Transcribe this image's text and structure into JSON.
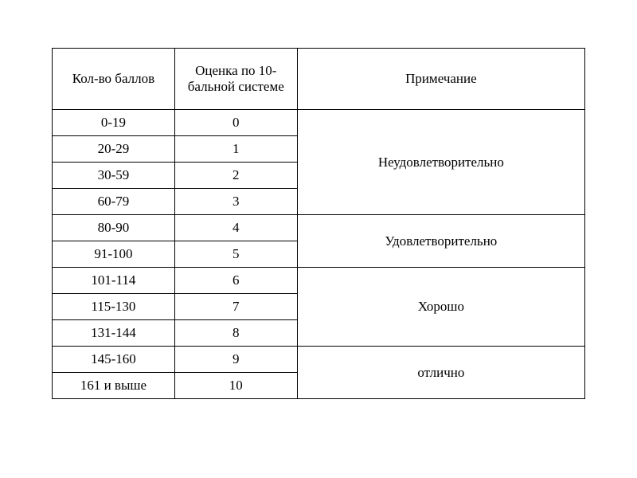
{
  "table": {
    "type": "table",
    "columns": [
      {
        "header": "Кол-во баллов",
        "width": "23%"
      },
      {
        "header": "Оценка по 10-бальной системе",
        "width": "23%"
      },
      {
        "header": "Примечание",
        "width": "54%"
      }
    ],
    "rows": [
      {
        "points": "0-19",
        "grade": "0"
      },
      {
        "points": "20-29",
        "grade": "1"
      },
      {
        "points": "30-59",
        "grade": "2"
      },
      {
        "points": "60-79",
        "grade": "3"
      },
      {
        "points": "80-90",
        "grade": "4"
      },
      {
        "points": "91-100",
        "grade": "5"
      },
      {
        "points": "101-114",
        "grade": "6"
      },
      {
        "points": "115-130",
        "grade": "7"
      },
      {
        "points": "131-144",
        "grade": "8"
      },
      {
        "points": "145-160",
        "grade": "9"
      },
      {
        "points": "161 и выше",
        "grade": "10"
      }
    ],
    "notes": [
      {
        "label": "Неудовлетворительно",
        "rowspan": 4
      },
      {
        "label": "Удовлетворительно",
        "rowspan": 2
      },
      {
        "label": "Хорошо",
        "rowspan": 3
      },
      {
        "label": "отлично",
        "rowspan": 2
      }
    ],
    "border_color": "#000000",
    "background_color": "#ffffff",
    "font_family": "Times New Roman",
    "header_fontsize": 17,
    "cell_fontsize": 17,
    "text_color": "#000000"
  }
}
